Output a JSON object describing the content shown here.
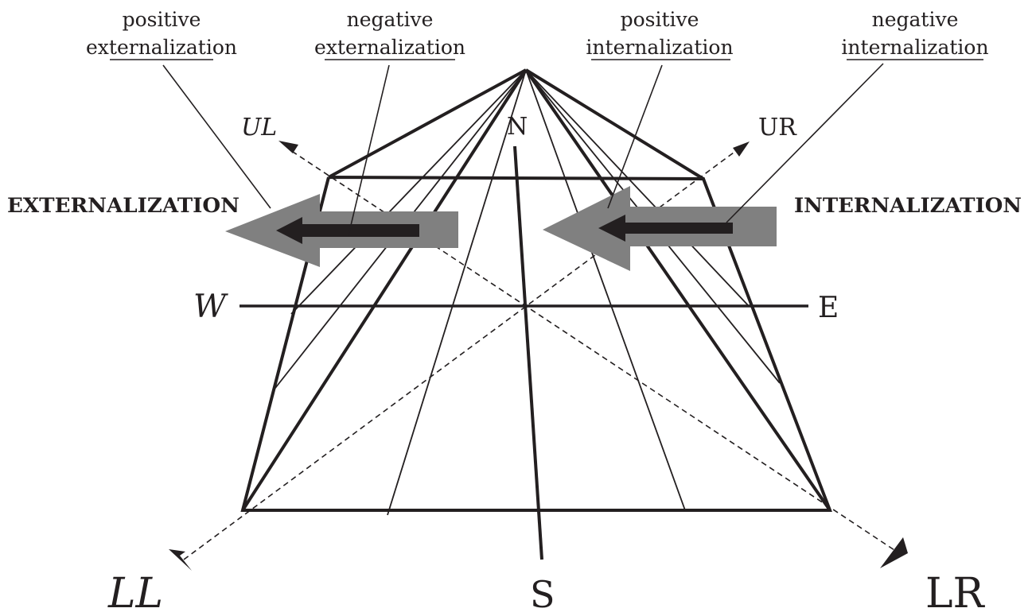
{
  "labels": {
    "positive_externalization": [
      "positive",
      "externalization"
    ],
    "negative_externalization": [
      "negative",
      "externalization"
    ],
    "positive_internalization": [
      "positive",
      "internalization"
    ],
    "negative_internalization": [
      "negative",
      "internalization"
    ],
    "externalization": "EXTERNALIZATION",
    "internalization": "INTERNALIZATION"
  },
  "directions": {
    "n": "N",
    "s": "S",
    "w": "W",
    "e": "E",
    "ul": "UL",
    "ur": "UR",
    "ll": "LL",
    "lr": "LR"
  },
  "colors": {
    "line": "#231f20",
    "big_arrow": "#808080",
    "small_arrow": "#231f20"
  }
}
